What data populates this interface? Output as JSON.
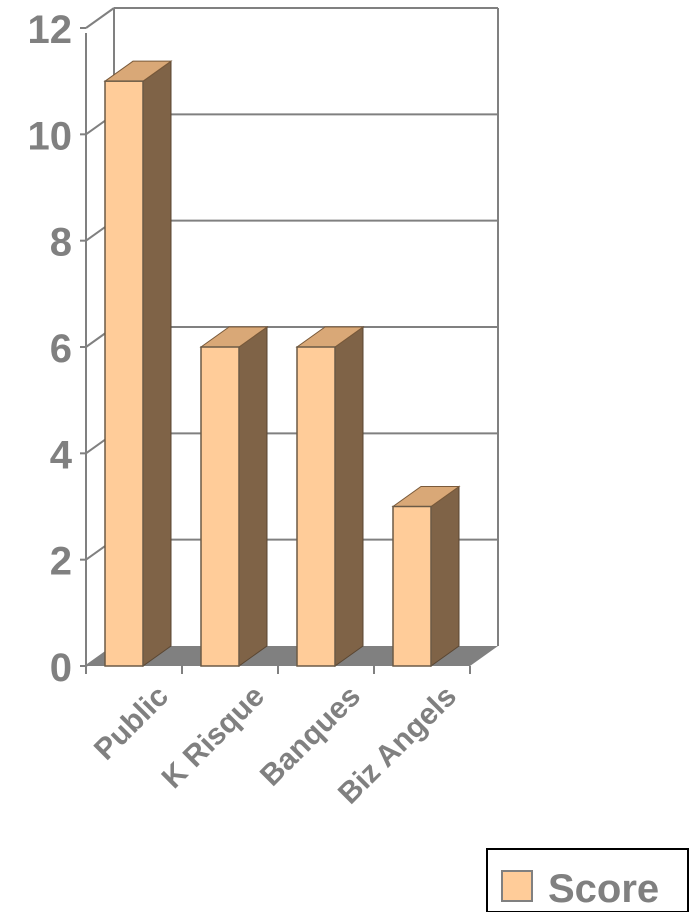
{
  "chart_data": {
    "type": "bar",
    "categories": [
      "Public",
      "K Risque",
      "Banques",
      "Biz Angels"
    ],
    "series": [
      {
        "name": "Score",
        "values": [
          11,
          6,
          6,
          3
        ]
      }
    ],
    "yticks": [
      "0",
      "2",
      "4",
      "6",
      "8",
      "10",
      "12"
    ],
    "ylim": [
      0,
      12
    ],
    "grid": true,
    "legend": "bottom-right",
    "style": "3d-column",
    "colors": {
      "bar_front": "#FFCC99",
      "bar_side": "#7F6347",
      "bar_top": "#D9A877",
      "floor": "#808080",
      "grid": "#808080",
      "text": "#808080"
    }
  }
}
